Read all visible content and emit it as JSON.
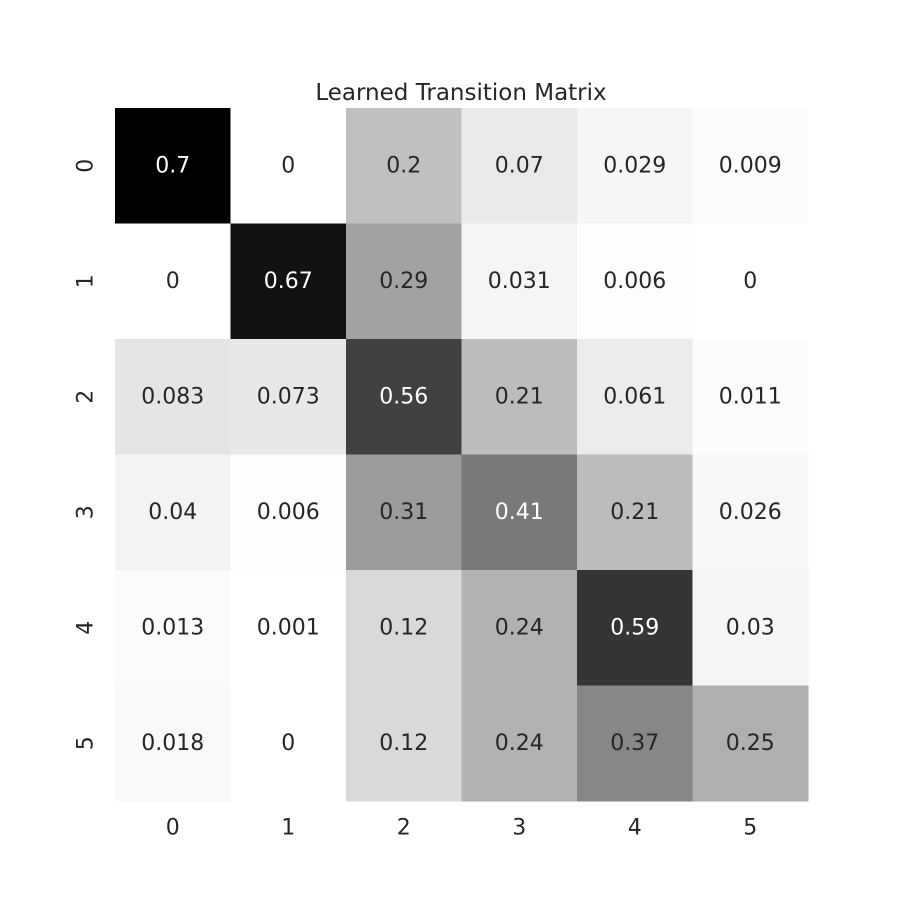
{
  "chart_data": {
    "type": "heatmap",
    "title": "Learned Transition Matrix",
    "xlabel": "",
    "ylabel": "",
    "x_categories": [
      "0",
      "1",
      "2",
      "3",
      "4",
      "5"
    ],
    "y_categories": [
      "0",
      "1",
      "2",
      "3",
      "4",
      "5"
    ],
    "values": [
      [
        0.7,
        0,
        0.2,
        0.07,
        0.029,
        0.009
      ],
      [
        0,
        0.67,
        0.29,
        0.031,
        0.006,
        0
      ],
      [
        0.083,
        0.073,
        0.56,
        0.21,
        0.061,
        0.011
      ],
      [
        0.04,
        0.006,
        0.31,
        0.41,
        0.21,
        0.026
      ],
      [
        0.013,
        0.001,
        0.12,
        0.24,
        0.59,
        0.03
      ],
      [
        0.018,
        0,
        0.12,
        0.24,
        0.37,
        0.25
      ]
    ],
    "value_labels": [
      [
        "0.7",
        "0",
        "0.2",
        "0.07",
        "0.029",
        "0.009"
      ],
      [
        "0",
        "0.67",
        "0.29",
        "0.031",
        "0.006",
        "0"
      ],
      [
        "0.083",
        "0.073",
        "0.56",
        "0.21",
        "0.061",
        "0.011"
      ],
      [
        "0.04",
        "0.006",
        "0.31",
        "0.41",
        "0.21",
        "0.026"
      ],
      [
        "0.013",
        "0.001",
        "0.12",
        "0.24",
        "0.59",
        "0.03"
      ],
      [
        "0.018",
        "0",
        "0.12",
        "0.24",
        "0.37",
        "0.25"
      ]
    ],
    "colormap": "Greys",
    "color_range": [
      0,
      0.7
    ],
    "colorbar": false,
    "grid": false,
    "colors": {
      "low": "#ffffff",
      "high": "#000000",
      "text_dark": "#262626",
      "text_light": "#ffffff"
    }
  }
}
